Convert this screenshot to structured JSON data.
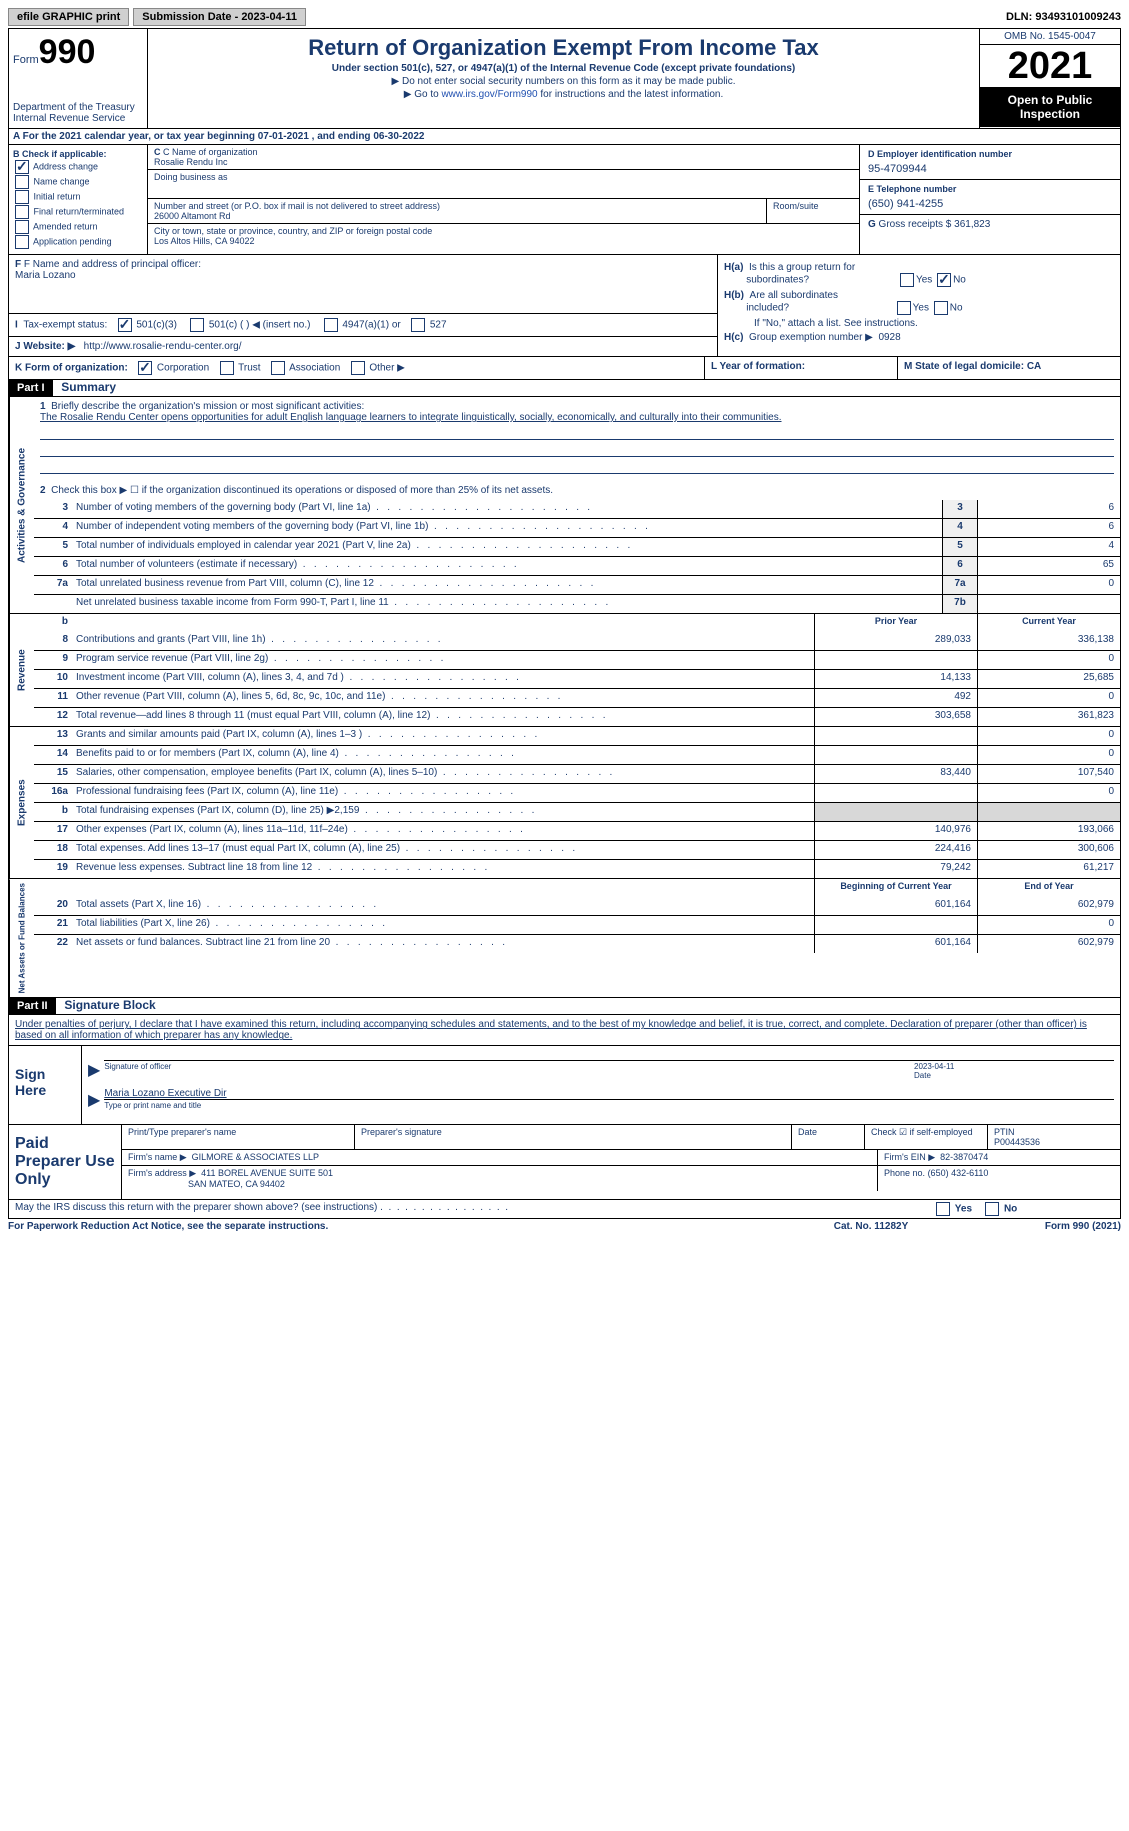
{
  "topbar": {
    "efile": "efile GRAPHIC print",
    "submission": "Submission Date - 2023-04-11",
    "dln": "DLN: 93493101009243"
  },
  "header": {
    "form_label": "Form",
    "form_number": "990",
    "title": "Return of Organization Exempt From Income Tax",
    "subtitle": "Under section 501(c), 527, or 4947(a)(1) of the Internal Revenue Code (except private foundations)",
    "note1": "▶ Do not enter social security numbers on this form as it may be made public.",
    "note2_prefix": "▶ Go to ",
    "note2_link": "www.irs.gov/Form990",
    "note2_suffix": " for instructions and the latest information.",
    "dept": "Department of the Treasury",
    "irs": "Internal Revenue Service",
    "omb": "OMB No. 1545-0047",
    "year": "2021",
    "open": "Open to Public Inspection"
  },
  "row_a": "A For the 2021 calendar year, or tax year beginning 07-01-2021    , and ending 06-30-2022",
  "section_b": {
    "b_label": "B Check if applicable:",
    "checks": [
      "Address change",
      "Name change",
      "Initial return",
      "Final return/terminated",
      "Amended return",
      "Application pending"
    ],
    "c_label": "C Name of organization",
    "org_name": "Rosalie Rendu Inc",
    "dba_label": "Doing business as",
    "addr_label": "Number and street (or P.O. box if mail is not delivered to street address)",
    "addr": "26000 Altamont Rd",
    "room_label": "Room/suite",
    "city_label": "City or town, state or province, country, and ZIP or foreign postal code",
    "city": "Los Altos Hills, CA  94022",
    "d_label": "D Employer identification number",
    "ein": "95-4709944",
    "e_label": "E Telephone number",
    "phone": "(650) 941-4255",
    "g_label": "G Gross receipts $ ",
    "gross": "361,823"
  },
  "fh": {
    "f_label": "F Name and address of principal officer:",
    "f_name": "Maria Lozano",
    "i_label": "I  Tax-exempt status:",
    "i_501c3": "501(c)(3)",
    "i_501c": "501(c) (  ) ◀ (insert no.)",
    "i_4947": "4947(a)(1) or",
    "i_527": "527",
    "j_label": "J Website: ▶",
    "j_url": "http://www.rosalie-rendu-center.org/",
    "ha": "H(a)  Is this a group return for subordinates?",
    "hb": "H(b)  Are all subordinates included?",
    "hb_note": "If \"No,\" attach a list. See instructions.",
    "hc": "H(c)  Group exemption number ▶",
    "hc_val": "0928",
    "yes": "Yes",
    "no": "No"
  },
  "row_k": {
    "k_label": "K Form of organization:",
    "corp": "Corporation",
    "trust": "Trust",
    "assoc": "Association",
    "other": "Other ▶",
    "l_label": "L Year of formation:",
    "m_label": "M State of legal domicile: ",
    "m_val": "CA"
  },
  "part1": {
    "header": "Part I",
    "title": "Summary",
    "vert_activities": "Activities & Governance",
    "vert_revenue": "Revenue",
    "vert_expenses": "Expenses",
    "vert_netassets": "Net Assets or Fund Balances",
    "line1_label": "Briefly describe the organization's mission or most significant activities:",
    "mission": "The Rosalie Rendu Center opens opportunities for adult English language learners to integrate linguistically, socially, economically, and culturally into their communities.",
    "line2": "Check this box ▶ ☐  if the organization discontinued its operations or disposed of more than 25% of its net assets.",
    "lines_gov": [
      {
        "num": "3",
        "desc": "Number of voting members of the governing body (Part VI, line 1a)",
        "box": "3",
        "val": "6"
      },
      {
        "num": "4",
        "desc": "Number of independent voting members of the governing body (Part VI, line 1b)",
        "box": "4",
        "val": "6"
      },
      {
        "num": "5",
        "desc": "Total number of individuals employed in calendar year 2021 (Part V, line 2a)",
        "box": "5",
        "val": "4"
      },
      {
        "num": "6",
        "desc": "Total number of volunteers (estimate if necessary)",
        "box": "6",
        "val": "65"
      },
      {
        "num": "7a",
        "desc": "Total unrelated business revenue from Part VIII, column (C), line 12",
        "box": "7a",
        "val": "0"
      },
      {
        "num": "",
        "desc": "Net unrelated business taxable income from Form 990-T, Part I, line 11",
        "box": "7b",
        "val": ""
      }
    ],
    "prior_year": "Prior Year",
    "current_year": "Current Year",
    "lines_rev": [
      {
        "num": "8",
        "desc": "Contributions and grants (Part VIII, line 1h)",
        "prior": "289,033",
        "curr": "336,138"
      },
      {
        "num": "9",
        "desc": "Program service revenue (Part VIII, line 2g)",
        "prior": "",
        "curr": "0"
      },
      {
        "num": "10",
        "desc": "Investment income (Part VIII, column (A), lines 3, 4, and 7d )",
        "prior": "14,133",
        "curr": "25,685"
      },
      {
        "num": "11",
        "desc": "Other revenue (Part VIII, column (A), lines 5, 6d, 8c, 9c, 10c, and 11e)",
        "prior": "492",
        "curr": "0"
      },
      {
        "num": "12",
        "desc": "Total revenue—add lines 8 through 11 (must equal Part VIII, column (A), line 12)",
        "prior": "303,658",
        "curr": "361,823"
      }
    ],
    "lines_exp": [
      {
        "num": "13",
        "desc": "Grants and similar amounts paid (Part IX, column (A), lines 1–3 )",
        "prior": "",
        "curr": "0"
      },
      {
        "num": "14",
        "desc": "Benefits paid to or for members (Part IX, column (A), line 4)",
        "prior": "",
        "curr": "0"
      },
      {
        "num": "15",
        "desc": "Salaries, other compensation, employee benefits (Part IX, column (A), lines 5–10)",
        "prior": "83,440",
        "curr": "107,540"
      },
      {
        "num": "16a",
        "desc": "Professional fundraising fees (Part IX, column (A), line 11e)",
        "prior": "",
        "curr": "0"
      },
      {
        "num": "b",
        "desc": "Total fundraising expenses (Part IX, column (D), line 25) ▶2,159",
        "prior": "shaded",
        "curr": "shaded"
      },
      {
        "num": "17",
        "desc": "Other expenses (Part IX, column (A), lines 11a–11d, 11f–24e)",
        "prior": "140,976",
        "curr": "193,066"
      },
      {
        "num": "18",
        "desc": "Total expenses. Add lines 13–17 (must equal Part IX, column (A), line 25)",
        "prior": "224,416",
        "curr": "300,606"
      },
      {
        "num": "19",
        "desc": "Revenue less expenses. Subtract line 18 from line 12",
        "prior": "79,242",
        "curr": "61,217"
      }
    ],
    "beg_year": "Beginning of Current Year",
    "end_year": "End of Year",
    "lines_net": [
      {
        "num": "20",
        "desc": "Total assets (Part X, line 16)",
        "prior": "601,164",
        "curr": "602,979"
      },
      {
        "num": "21",
        "desc": "Total liabilities (Part X, line 26)",
        "prior": "",
        "curr": "0"
      },
      {
        "num": "22",
        "desc": "Net assets or fund balances. Subtract line 21 from line 20",
        "prior": "601,164",
        "curr": "602,979"
      }
    ]
  },
  "part2": {
    "header": "Part II",
    "title": "Signature Block",
    "perjury": "Under penalties of perjury, I declare that I have examined this return, including accompanying schedules and statements, and to the best of my knowledge and belief, it is true, correct, and complete. Declaration of preparer (other than officer) is based on all information of which preparer has any knowledge.",
    "sign_here": "Sign Here",
    "sig_officer": "Signature of officer",
    "sig_date": "2023-04-11",
    "date_label": "Date",
    "officer_name": "Maria Lozano  Executive Dir",
    "type_label": "Type or print name and title",
    "paid_prep": "Paid Preparer Use Only",
    "print_name_label": "Print/Type preparer's name",
    "prep_sig_label": "Preparer's signature",
    "check_self": "Check ☑ if self-employed",
    "ptin_label": "PTIN",
    "ptin": "P00443536",
    "firm_name_label": "Firm's name    ▶",
    "firm_name": "GILMORE & ASSOCIATES LLP",
    "firm_ein_label": "Firm's EIN ▶",
    "firm_ein": "82-3870474",
    "firm_addr_label": "Firm's address ▶",
    "firm_addr1": "411 BOREL AVENUE SUITE 501",
    "firm_addr2": "SAN MATEO, CA  94402",
    "phone_label": "Phone no.",
    "phone": "(650) 432-6110",
    "may_irs": "May the IRS discuss this return with the preparer shown above? (see instructions)"
  },
  "footer": {
    "paperwork": "For Paperwork Reduction Act Notice, see the separate instructions.",
    "cat": "Cat. No. 11282Y",
    "form": "Form 990 (2021)"
  }
}
